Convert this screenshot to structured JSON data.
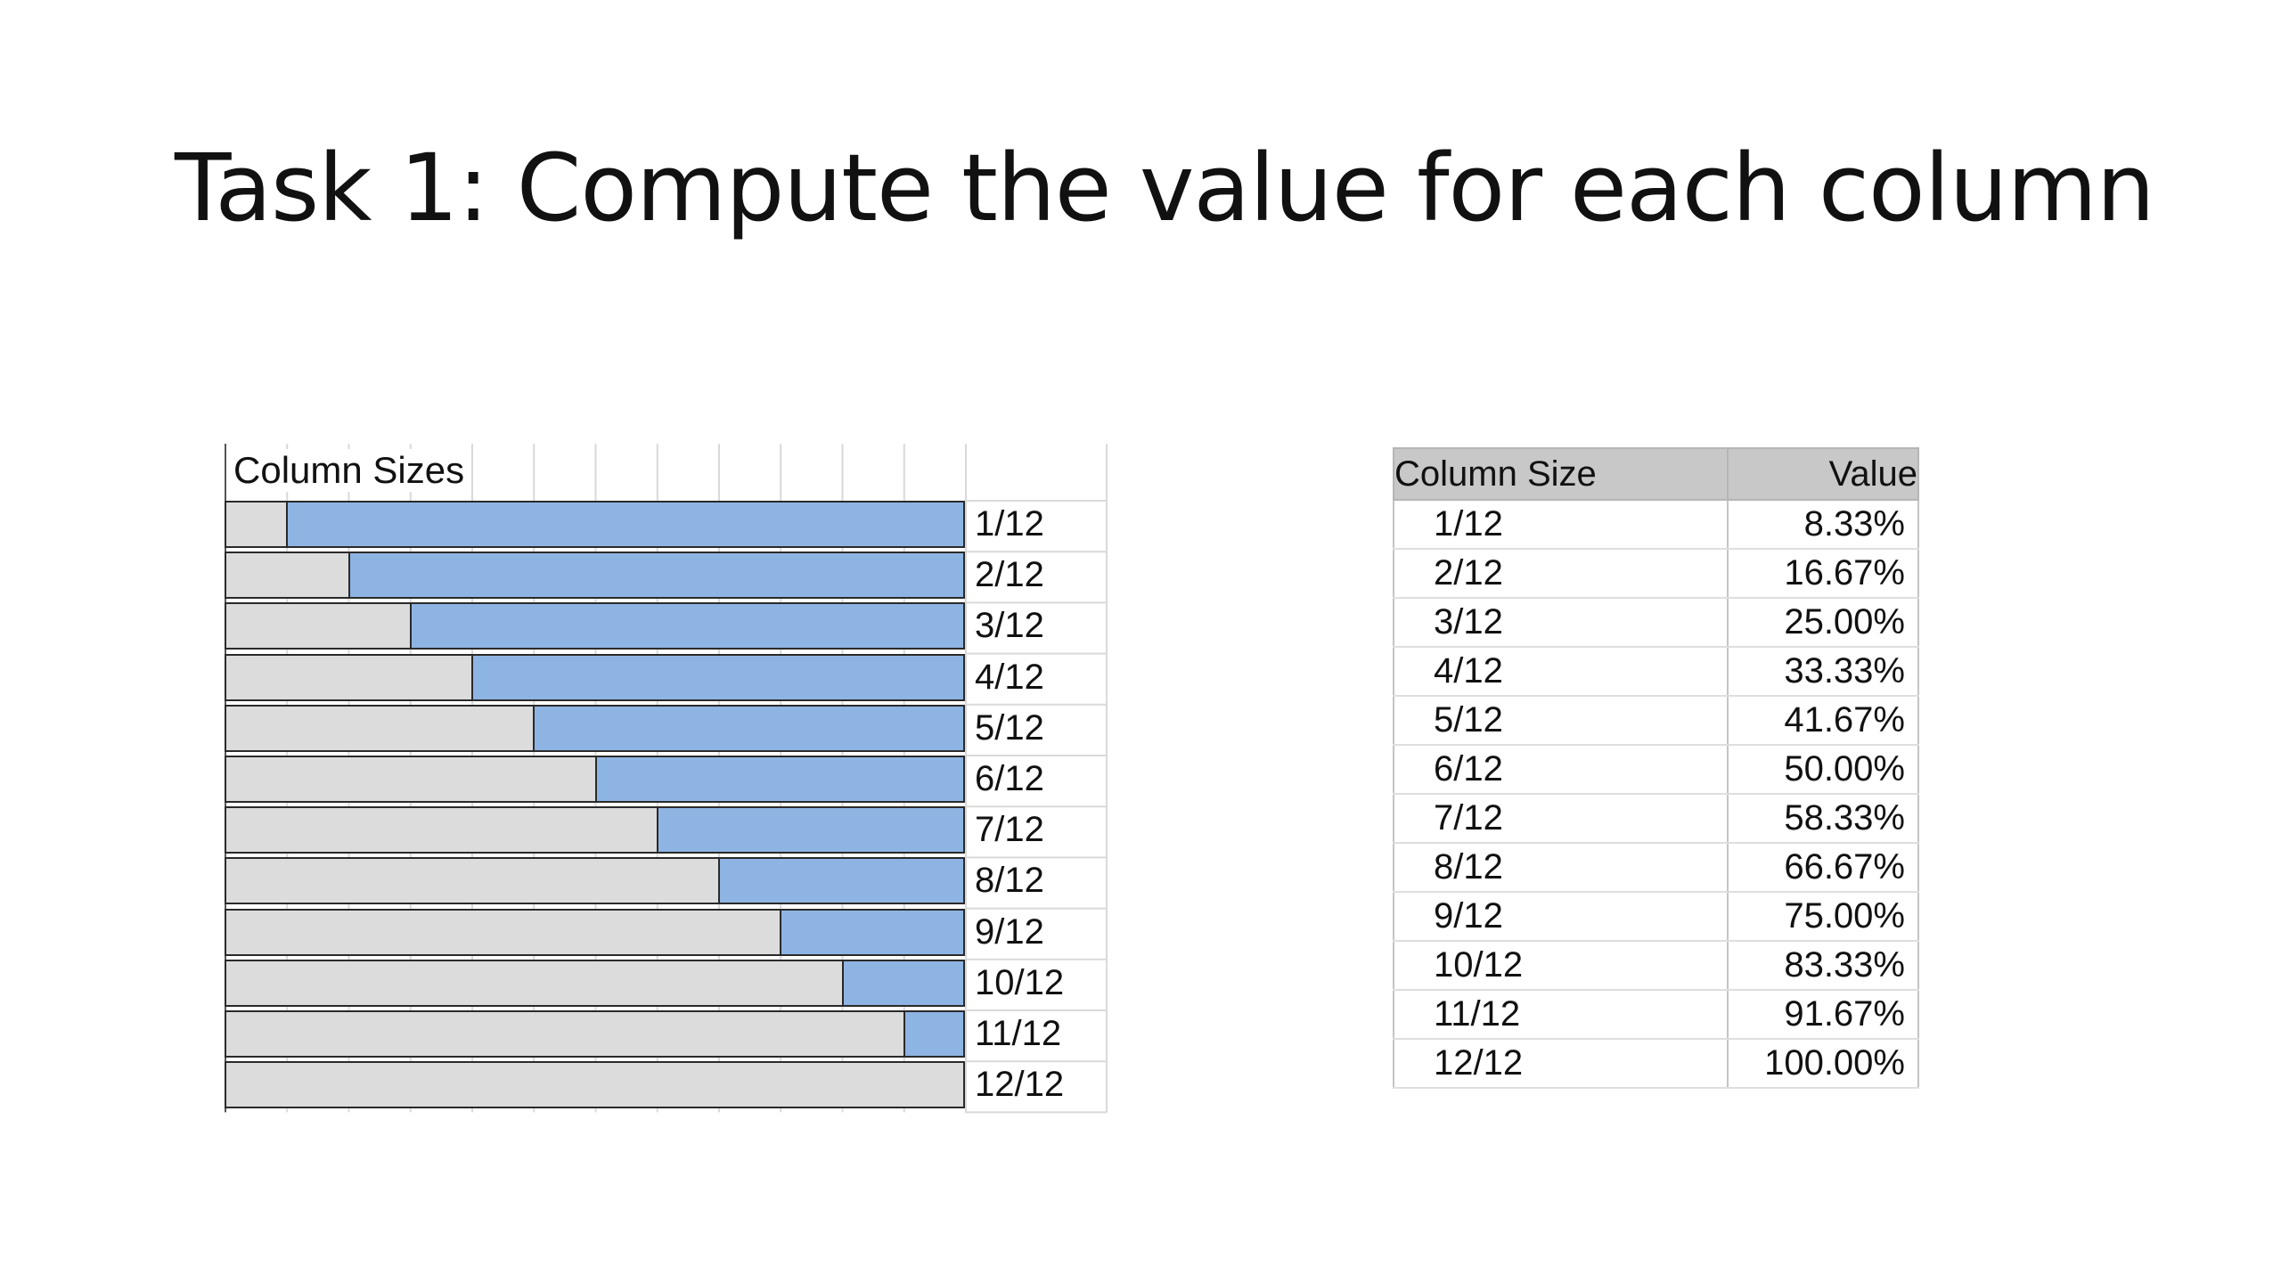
{
  "slide": {
    "title": "Task 1: Compute the value for each column"
  },
  "chart_data": {
    "type": "bar",
    "title": "Column Sizes",
    "categories": [
      "1/12",
      "2/12",
      "3/12",
      "4/12",
      "5/12",
      "6/12",
      "7/12",
      "8/12",
      "9/12",
      "10/12",
      "11/12",
      "12/12"
    ],
    "values": [
      1,
      2,
      3,
      4,
      5,
      6,
      7,
      8,
      9,
      10,
      11,
      12
    ],
    "total": 12,
    "colors": {
      "track": "#dcdcdc",
      "fill": "#8eb4e3",
      "outline": "#2a2a2a"
    }
  },
  "table": {
    "headers": {
      "size": "Column Size",
      "value": "Value"
    },
    "rows": [
      {
        "size": "1/12",
        "value": "8.33%"
      },
      {
        "size": "2/12",
        "value": "16.67%"
      },
      {
        "size": "3/12",
        "value": "25.00%"
      },
      {
        "size": "4/12",
        "value": "33.33%"
      },
      {
        "size": "5/12",
        "value": "41.67%"
      },
      {
        "size": "6/12",
        "value": "50.00%"
      },
      {
        "size": "7/12",
        "value": "58.33%"
      },
      {
        "size": "8/12",
        "value": "66.67%"
      },
      {
        "size": "9/12",
        "value": "75.00%"
      },
      {
        "size": "10/12",
        "value": "83.33%"
      },
      {
        "size": "11/12",
        "value": "91.67%"
      },
      {
        "size": "12/12",
        "value": "100.00%"
      }
    ]
  }
}
